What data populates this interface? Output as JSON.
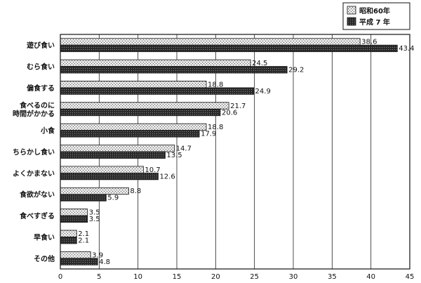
{
  "chart_data": {
    "type": "bar",
    "orientation": "horizontal",
    "categories": [
      [
        "遊び食い"
      ],
      [
        "むら食い"
      ],
      [
        "偏食する"
      ],
      [
        "食べるのに",
        "時間がかかる"
      ],
      [
        "小食"
      ],
      [
        "ちらかし食い"
      ],
      [
        "よくかまない"
      ],
      [
        "食欲がない"
      ],
      [
        "食べすぎる"
      ],
      [
        "早食い"
      ],
      [
        "その他"
      ]
    ],
    "series": [
      {
        "name": "昭和60年",
        "values": [
          38.6,
          24.5,
          18.8,
          21.7,
          18.8,
          14.7,
          10.7,
          8.8,
          3.5,
          2.1,
          3.9
        ],
        "color": "#c8c8c8"
      },
      {
        "name": "平成 7 年",
        "values": [
          43.4,
          29.2,
          24.9,
          20.6,
          17.9,
          13.5,
          12.6,
          5.9,
          3.5,
          2.1,
          4.8
        ],
        "color": "#3a3a3a"
      }
    ],
    "value_labels": [
      [
        "38.6",
        "24.5",
        "18.8",
        "21.7",
        "18.8",
        "14.7",
        "10.7",
        "8.8",
        "3.5",
        "2.1",
        "3.9"
      ],
      [
        "43.4",
        "29.2",
        "24.9",
        "20.6",
        "17.9",
        "13.5",
        "12.6",
        "5.9",
        "3.5",
        "2.1",
        "4.8"
      ]
    ],
    "xlim": [
      0,
      45
    ],
    "xticks": [
      0,
      5,
      10,
      15,
      20,
      25,
      30,
      35,
      40,
      45
    ],
    "grid": "vertical",
    "legend_position": "top-right"
  }
}
